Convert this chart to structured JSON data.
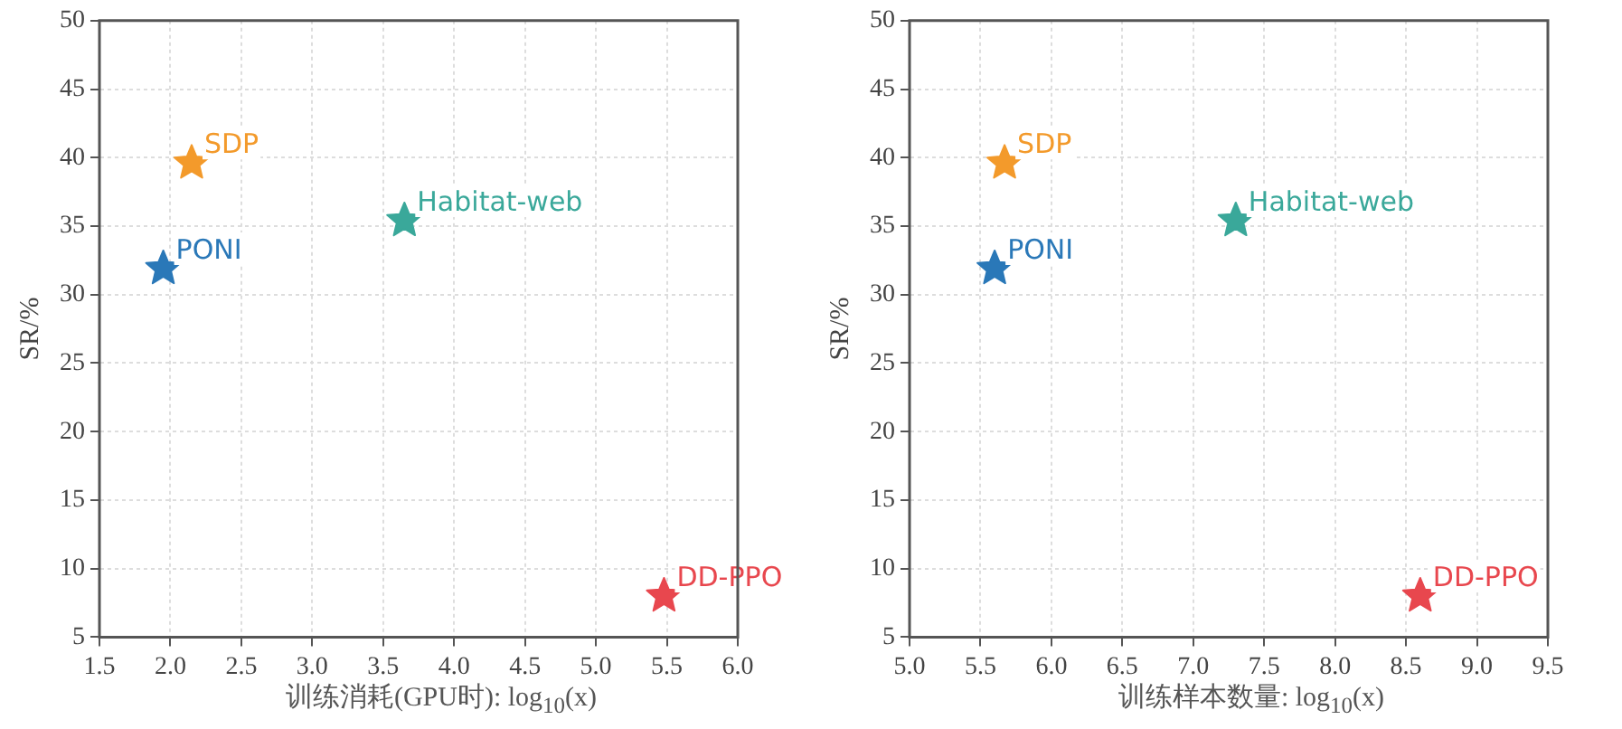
{
  "chart_data": [
    {
      "type": "scatter",
      "xlabel": "训练消耗(GPU时): log$_{10}$(x)",
      "ylabel": "SR/%",
      "xlim": [
        1.5,
        6.0
      ],
      "xticks": [
        {
          "value": 1.5,
          "label": "1.5"
        },
        {
          "value": 2.0,
          "label": "2.0"
        },
        {
          "value": 2.5,
          "label": "2.5"
        },
        {
          "value": 3.0,
          "label": "3.0"
        },
        {
          "value": 3.5,
          "label": "3.5"
        },
        {
          "value": 4.0,
          "label": "4.0"
        },
        {
          "value": 4.5,
          "label": "4.5"
        },
        {
          "value": 5.0,
          "label": "5.0"
        },
        {
          "value": 5.5,
          "label": "5.5"
        },
        {
          "value": 6.0,
          "label": "6.0"
        }
      ],
      "ylim": [
        5,
        50
      ],
      "yticks": [
        5,
        10,
        15,
        20,
        25,
        30,
        35,
        40,
        45,
        50
      ],
      "grid": true,
      "marker": "star",
      "series": [
        {
          "name": "SDP",
          "color": "#f39a2b",
          "x": [
            2.15
          ],
          "values": [
            39.6
          ]
        },
        {
          "name": "Habitat-web",
          "color": "#3aa89a",
          "x": [
            3.65
          ],
          "values": [
            35.4
          ]
        },
        {
          "name": "PONI",
          "color": "#2a78b8",
          "x": [
            1.95
          ],
          "values": [
            31.9
          ]
        },
        {
          "name": "DD-PPO",
          "color": "#e8474e",
          "x": [
            5.48
          ],
          "values": [
            8.0
          ]
        }
      ]
    },
    {
      "type": "scatter",
      "xlabel": "训练样本数量: log$_{10}$(x)",
      "ylabel": "SR/%",
      "xlim": [
        5.0,
        9.5
      ],
      "xticks": [
        {
          "value": 5.0,
          "label": "5.0"
        },
        {
          "value": 5.5,
          "label": "5.5"
        },
        {
          "value": 6.0,
          "label": "6.0"
        },
        {
          "value": 6.5,
          "label": "6.5"
        },
        {
          "value": 7.0,
          "label": "7.0"
        },
        {
          "value": 7.5,
          "label": "7.5"
        },
        {
          "value": 8.0,
          "label": "8.0"
        },
        {
          "value": 8.5,
          "label": "8.5"
        },
        {
          "value": 9.0,
          "label": "9.0"
        },
        {
          "value": 9.5,
          "label": "9.5"
        }
      ],
      "ylim": [
        5,
        50
      ],
      "yticks": [
        5,
        10,
        15,
        20,
        25,
        30,
        35,
        40,
        45,
        50
      ],
      "grid": true,
      "marker": "star",
      "series": [
        {
          "name": "SDP",
          "color": "#f39a2b",
          "x": [
            5.67
          ],
          "values": [
            39.6
          ]
        },
        {
          "name": "Habitat-web",
          "color": "#3aa89a",
          "x": [
            7.3
          ],
          "values": [
            35.4
          ]
        },
        {
          "name": "PONI",
          "color": "#2a78b8",
          "x": [
            5.6
          ],
          "values": [
            31.9
          ]
        },
        {
          "name": "DD-PPO",
          "color": "#e8474e",
          "x": [
            8.6
          ],
          "values": [
            8.0
          ]
        }
      ]
    }
  ]
}
